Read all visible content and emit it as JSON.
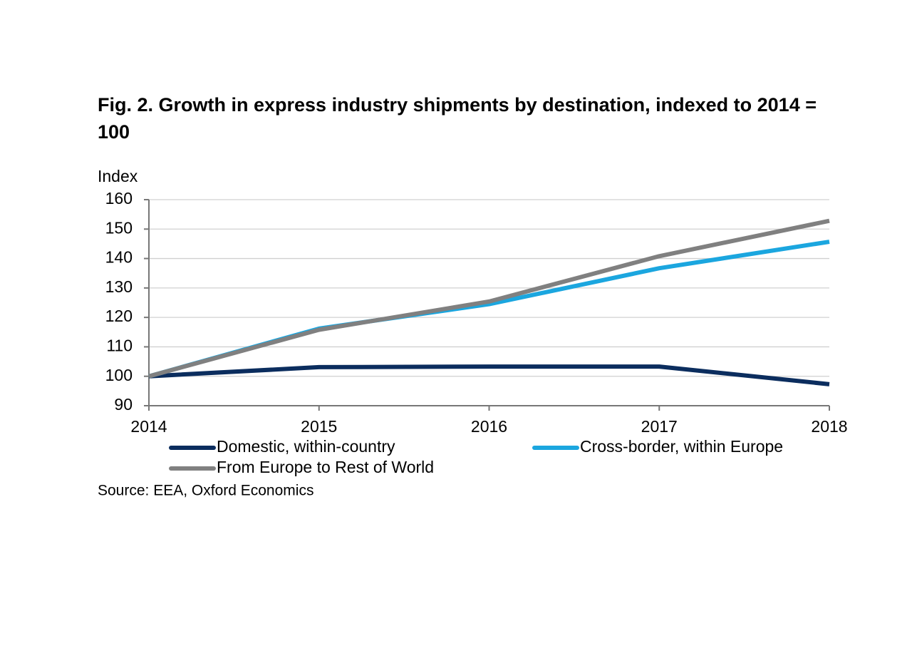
{
  "chart_data": {
    "type": "line",
    "title": "Fig. 2. Growth in express industry shipments by destination, indexed to 2014 = 100",
    "y_label": "Index",
    "source": "Source: EEA, Oxford Economics",
    "x": [
      2014,
      2015,
      2016,
      2017,
      2018
    ],
    "xlim": [
      2014,
      2018
    ],
    "xticks": [
      2014,
      2015,
      2016,
      2017,
      2018
    ],
    "ylim": [
      90,
      160
    ],
    "yticks": [
      90,
      100,
      110,
      120,
      130,
      140,
      150,
      160
    ],
    "grid": true,
    "series": [
      {
        "name": "Domestic, within-country",
        "color": "#0b2d5e",
        "values": [
          100,
          103.1,
          103.3,
          103.3,
          97.3
        ]
      },
      {
        "name": "Cross-border, within Europe",
        "color": "#1ba6df",
        "values": [
          100,
          116.2,
          124.5,
          136.7,
          145.7
        ]
      },
      {
        "name": "From Europe to Rest of World",
        "color": "#808080",
        "values": [
          100,
          115.8,
          125.4,
          140.8,
          152.8
        ]
      }
    ]
  }
}
